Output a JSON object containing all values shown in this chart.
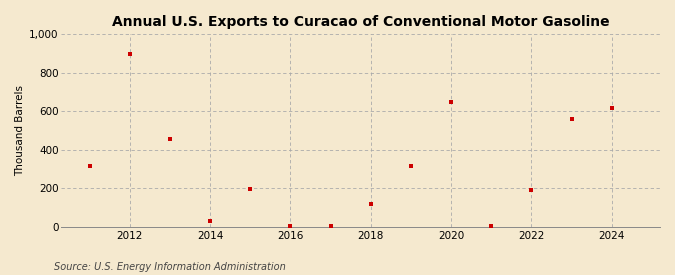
{
  "title": "Annual U.S. Exports to Curacao of Conventional Motor Gasoline",
  "ylabel": "Thousand Barrels",
  "source": "Source: U.S. Energy Information Administration",
  "background_color": "#f5e9cf",
  "plot_background_color": "#f5e9cf",
  "marker_color": "#cc0000",
  "years": [
    2011,
    2012,
    2013,
    2014,
    2015,
    2016,
    2017,
    2018,
    2019,
    2020,
    2021,
    2022,
    2023,
    2024
  ],
  "values": [
    315,
    900,
    455,
    30,
    195,
    2,
    5,
    115,
    315,
    650,
    5,
    190,
    560,
    615
  ],
  "ylim": [
    0,
    1000
  ],
  "yticks": [
    0,
    200,
    400,
    600,
    800,
    1000
  ],
  "xticks": [
    2012,
    2014,
    2016,
    2018,
    2020,
    2022,
    2024
  ],
  "xlim": [
    2010.3,
    2025.2
  ],
  "grid_color": "#aaaaaa",
  "title_fontsize": 10,
  "tick_fontsize": 7.5,
  "ylabel_fontsize": 7.5,
  "source_fontsize": 7
}
